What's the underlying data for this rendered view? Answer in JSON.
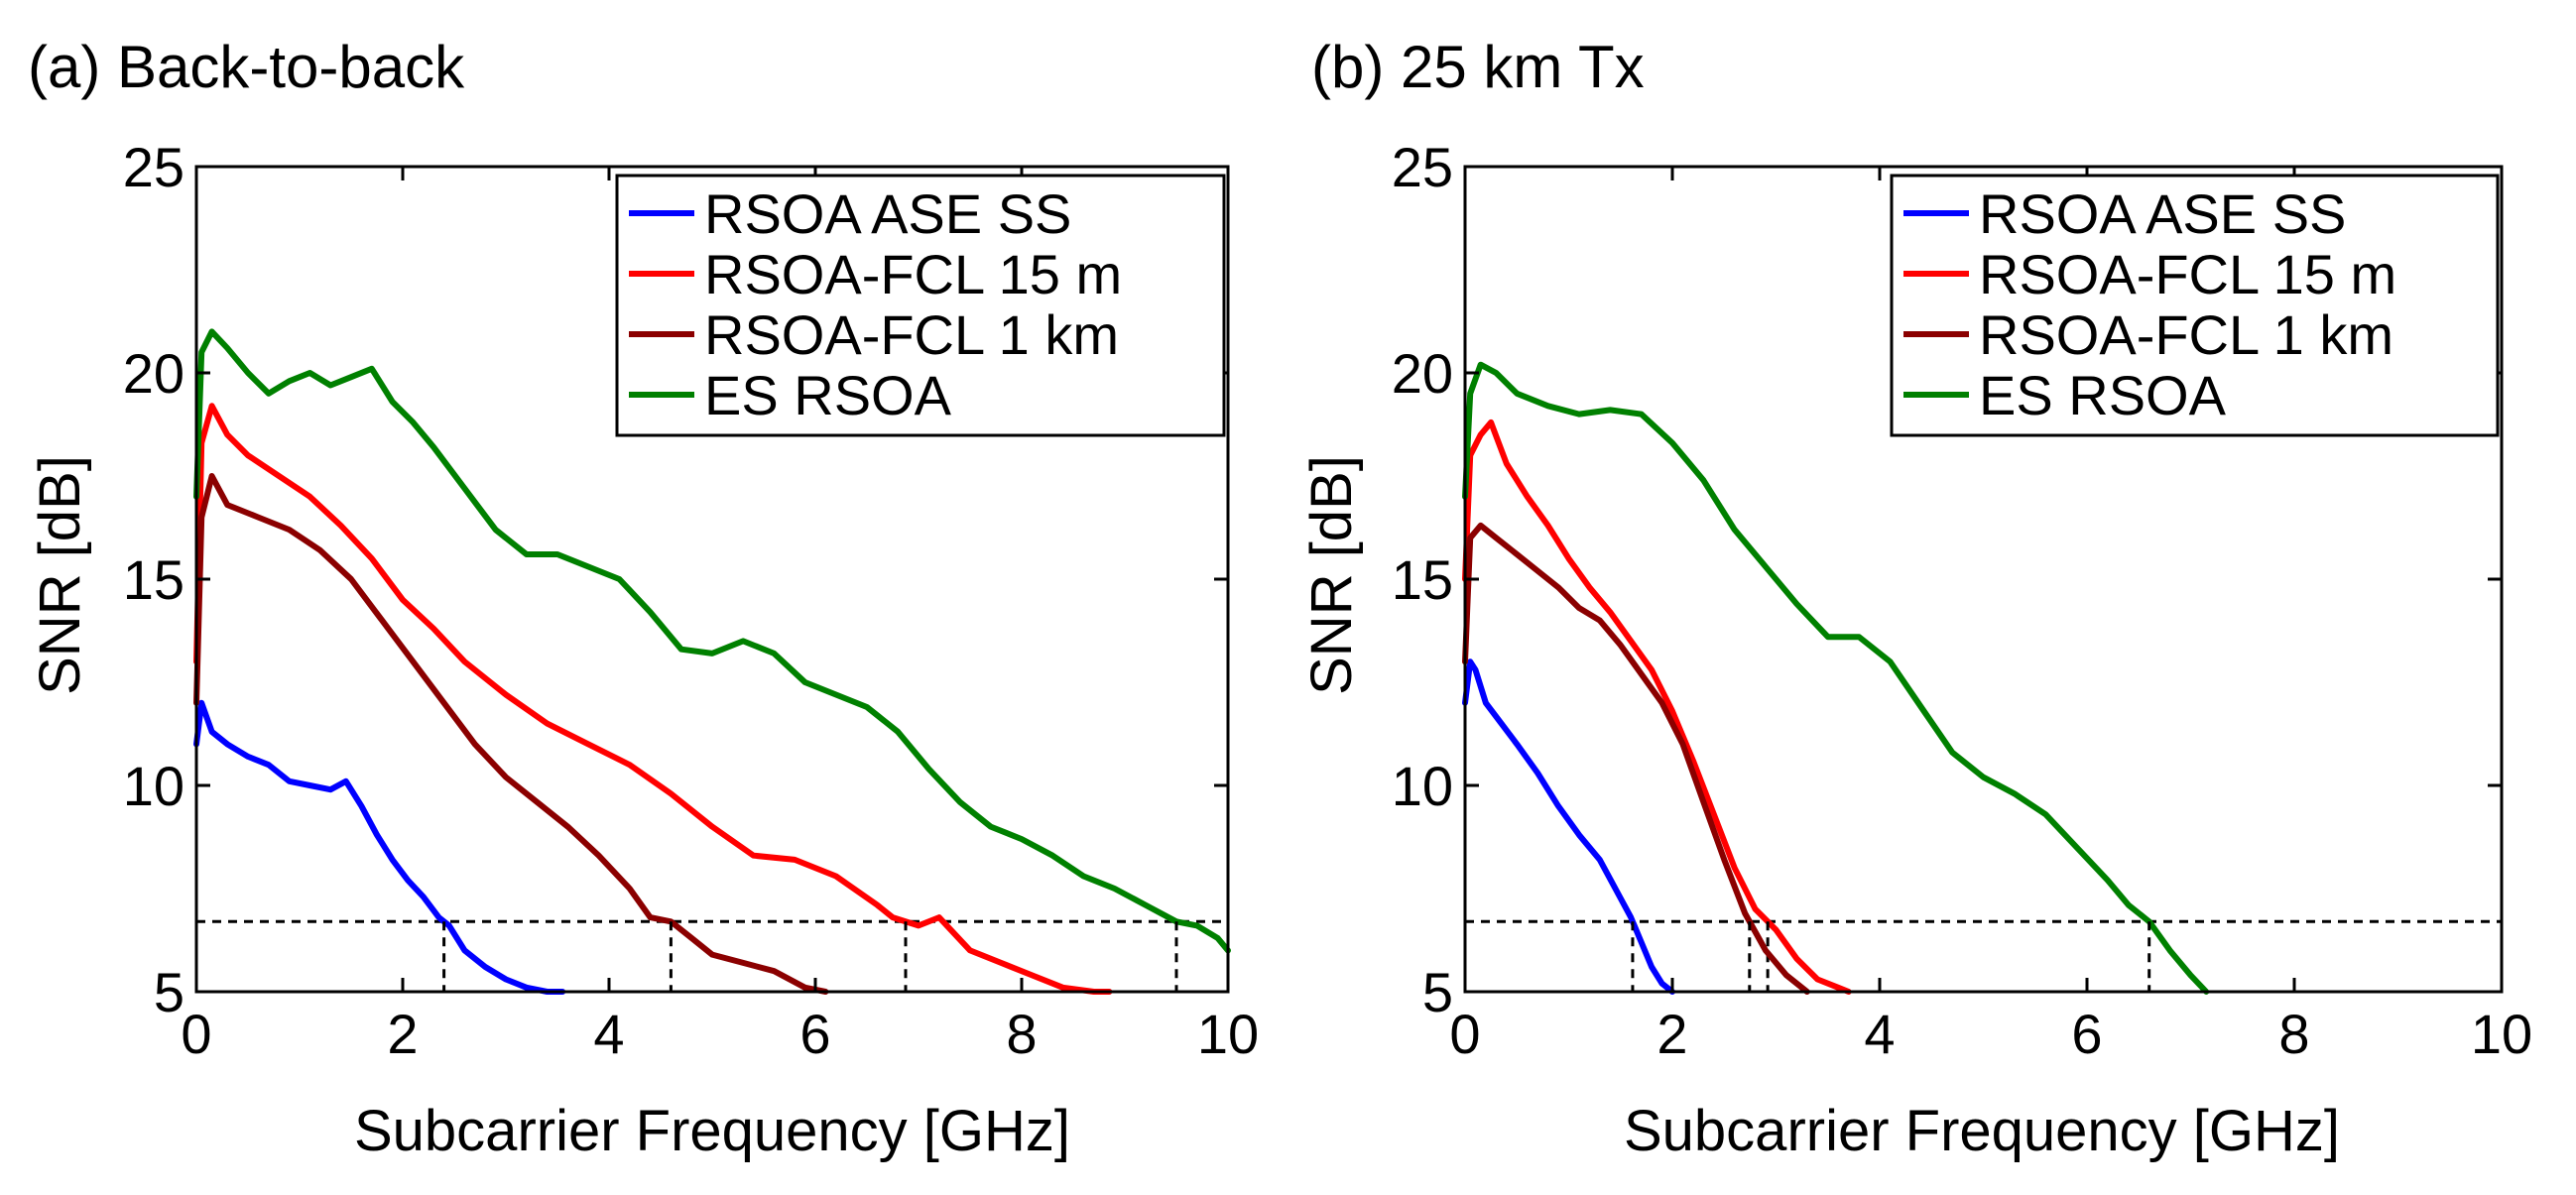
{
  "chart_data": [
    {
      "type": "line",
      "title": "(a) Back-to-back",
      "xlabel": "Subcarrier Frequency [GHz]",
      "ylabel": "SNR [dB]",
      "xlim": [
        0,
        10
      ],
      "ylim": [
        5,
        25
      ],
      "xticks": [
        "0",
        "2",
        "4",
        "6",
        "8",
        "10"
      ],
      "yticks": [
        "5",
        "10",
        "15",
        "20",
        "25"
      ],
      "grid": false,
      "legend_position": "top-right",
      "threshold": 6.7,
      "series": [
        {
          "name": "RSOA ASE SS",
          "color": "#0000ff",
          "x": [
            0,
            0.05,
            0.15,
            0.3,
            0.5,
            0.7,
            0.9,
            1.1,
            1.3,
            1.45,
            1.6,
            1.75,
            1.9,
            2.05,
            2.2,
            2.35,
            2.45,
            2.6,
            2.8,
            3.0,
            3.2,
            3.4,
            3.55
          ],
          "y": [
            11.0,
            12.0,
            11.3,
            11.0,
            10.7,
            10.5,
            10.1,
            10.0,
            9.9,
            10.1,
            9.5,
            8.8,
            8.2,
            7.7,
            7.3,
            6.8,
            6.6,
            6.0,
            5.6,
            5.3,
            5.1,
            5.0,
            5.0
          ]
        },
        {
          "name": "RSOA-FCL 15 m",
          "color": "#ff0000",
          "x": [
            0,
            0.05,
            0.15,
            0.3,
            0.5,
            0.8,
            1.1,
            1.4,
            1.7,
            2.0,
            2.3,
            2.6,
            3.0,
            3.4,
            3.8,
            4.2,
            4.6,
            5.0,
            5.4,
            5.8,
            6.2,
            6.6,
            6.75,
            7.0,
            7.2,
            7.5,
            7.8,
            8.1,
            8.4,
            8.7,
            8.85
          ],
          "y": [
            13.0,
            18.3,
            19.2,
            18.5,
            18.0,
            17.5,
            17.0,
            16.3,
            15.5,
            14.5,
            13.8,
            13.0,
            12.2,
            11.5,
            11.0,
            10.5,
            9.8,
            9.0,
            8.3,
            8.2,
            7.8,
            7.1,
            6.8,
            6.6,
            6.8,
            6.0,
            5.7,
            5.4,
            5.1,
            5.0,
            5.0
          ]
        },
        {
          "name": "RSOA-FCL 1 km",
          "color": "#8b0000",
          "x": [
            0,
            0.05,
            0.15,
            0.3,
            0.6,
            0.9,
            1.2,
            1.5,
            1.8,
            2.1,
            2.4,
            2.7,
            3.0,
            3.3,
            3.6,
            3.9,
            4.2,
            4.4,
            4.6,
            4.8,
            5.0,
            5.3,
            5.6,
            5.9,
            6.1
          ],
          "y": [
            12.0,
            16.5,
            17.5,
            16.8,
            16.5,
            16.2,
            15.7,
            15.0,
            14.0,
            13.0,
            12.0,
            11.0,
            10.2,
            9.6,
            9.0,
            8.3,
            7.5,
            6.8,
            6.7,
            6.3,
            5.9,
            5.7,
            5.5,
            5.1,
            5.0
          ]
        },
        {
          "name": "ES RSOA",
          "color": "#008000",
          "x": [
            0,
            0.05,
            0.15,
            0.3,
            0.5,
            0.7,
            0.9,
            1.1,
            1.3,
            1.5,
            1.7,
            1.9,
            2.1,
            2.3,
            2.6,
            2.9,
            3.2,
            3.5,
            3.8,
            4.1,
            4.4,
            4.7,
            5.0,
            5.3,
            5.6,
            5.9,
            6.2,
            6.5,
            6.8,
            7.1,
            7.4,
            7.7,
            8.0,
            8.3,
            8.6,
            8.9,
            9.2,
            9.5,
            9.7,
            9.9,
            10.0
          ],
          "y": [
            17.0,
            20.5,
            21.0,
            20.6,
            20.0,
            19.5,
            19.8,
            20.0,
            19.7,
            19.9,
            20.1,
            19.3,
            18.8,
            18.2,
            17.2,
            16.2,
            15.6,
            15.6,
            15.3,
            15.0,
            14.2,
            13.3,
            13.2,
            13.5,
            13.2,
            12.5,
            12.2,
            11.9,
            11.3,
            10.4,
            9.6,
            9.0,
            8.7,
            8.3,
            7.8,
            7.5,
            7.1,
            6.7,
            6.6,
            6.3,
            6.0
          ]
        }
      ]
    },
    {
      "type": "line",
      "title": "(b) 25 km Tx",
      "xlabel": "Subcarrier Frequency [GHz]",
      "ylabel": "SNR [dB]",
      "xlim": [
        0,
        10
      ],
      "ylim": [
        5,
        25
      ],
      "xticks": [
        "0",
        "2",
        "4",
        "6",
        "8",
        "10"
      ],
      "yticks": [
        "5",
        "10",
        "15",
        "20",
        "25"
      ],
      "grid": false,
      "legend_position": "top-right",
      "threshold": 6.7,
      "series": [
        {
          "name": "RSOA ASE SS",
          "color": "#0000ff",
          "x": [
            0,
            0.05,
            0.1,
            0.2,
            0.35,
            0.5,
            0.7,
            0.9,
            1.1,
            1.3,
            1.45,
            1.6,
            1.7,
            1.8,
            1.9,
            2.0
          ],
          "y": [
            12.0,
            13.0,
            12.8,
            12.0,
            11.5,
            11.0,
            10.3,
            9.5,
            8.8,
            8.2,
            7.5,
            6.8,
            6.2,
            5.6,
            5.2,
            5.0
          ]
        },
        {
          "name": "RSOA-FCL 15 m",
          "color": "#ff0000",
          "x": [
            0,
            0.05,
            0.15,
            0.25,
            0.4,
            0.6,
            0.8,
            1.0,
            1.2,
            1.4,
            1.6,
            1.8,
            2.0,
            2.2,
            2.4,
            2.6,
            2.8,
            3.0,
            3.2,
            3.4,
            3.6,
            3.7
          ],
          "y": [
            15.0,
            18.0,
            18.5,
            18.8,
            17.8,
            17.0,
            16.3,
            15.5,
            14.8,
            14.2,
            13.5,
            12.8,
            11.8,
            10.6,
            9.3,
            8.0,
            7.0,
            6.5,
            5.8,
            5.3,
            5.1,
            5.0
          ]
        },
        {
          "name": "RSOA-FCL 1 km",
          "color": "#8b0000",
          "x": [
            0,
            0.05,
            0.15,
            0.3,
            0.5,
            0.7,
            0.9,
            1.1,
            1.3,
            1.5,
            1.7,
            1.9,
            2.1,
            2.3,
            2.5,
            2.7,
            2.9,
            3.1,
            3.3
          ],
          "y": [
            13.0,
            16.0,
            16.3,
            16.0,
            15.6,
            15.2,
            14.8,
            14.3,
            14.0,
            13.4,
            12.7,
            12.0,
            11.0,
            9.6,
            8.2,
            6.9,
            6.0,
            5.4,
            5.0
          ]
        },
        {
          "name": "ES RSOA",
          "color": "#008000",
          "x": [
            0,
            0.05,
            0.15,
            0.3,
            0.5,
            0.8,
            1.1,
            1.4,
            1.7,
            2.0,
            2.3,
            2.6,
            2.9,
            3.2,
            3.5,
            3.8,
            4.1,
            4.4,
            4.7,
            5.0,
            5.3,
            5.6,
            5.9,
            6.2,
            6.4,
            6.6,
            6.8,
            7.0,
            7.15
          ],
          "y": [
            17.0,
            19.5,
            20.2,
            20.0,
            19.5,
            19.2,
            19.0,
            19.1,
            19.0,
            18.3,
            17.4,
            16.2,
            15.3,
            14.4,
            13.6,
            13.6,
            13.0,
            11.9,
            10.8,
            10.2,
            9.8,
            9.3,
            8.5,
            7.7,
            7.1,
            6.7,
            6.0,
            5.4,
            5.0
          ]
        }
      ]
    }
  ]
}
